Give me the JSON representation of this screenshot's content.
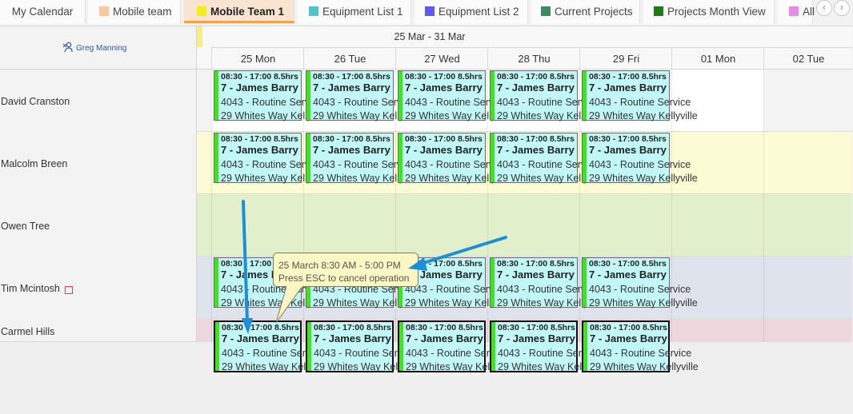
{
  "tabs": [
    {
      "label": "My Calendar",
      "swatch": ""
    },
    {
      "label": "Mobile team",
      "swatch": "#f8c99a"
    },
    {
      "label": "Mobile Team 1",
      "swatch": "#f5ee15",
      "active": true
    },
    {
      "label": "Equipment List 1",
      "swatch": "#4bc7c7"
    },
    {
      "label": "Equipment List 2",
      "swatch": "#5b5bf0"
    },
    {
      "label": "Current Projects",
      "swatch": "#3c8c5f"
    },
    {
      "label": "Projects Month View",
      "swatch": "#1f7a14"
    },
    {
      "label": "All",
      "swatch": "#e58be8"
    }
  ],
  "header": {
    "user": "Greg Manning",
    "week_range": "25 Mar - 31 Mar",
    "days": [
      "25 Mon",
      "26 Tue",
      "27 Wed",
      "28 Thu",
      "29 Fri",
      "01 Mon",
      "02 Tue"
    ]
  },
  "resources": [
    {
      "name": "David Cranston",
      "color": "#ffffff"
    },
    {
      "name": "Malcolm Breen",
      "color": "#fbfbd4"
    },
    {
      "name": "Owen Tree",
      "color": "#e2efcb"
    },
    {
      "name": "Tim Mcintosh",
      "color": "#dfe3ec"
    },
    {
      "name": "Carmel Hills",
      "color": "#ecd7dc"
    }
  ],
  "appointment": {
    "time": "08:30 - 17:00 8.5hrs",
    "title": "7 - James Barry",
    "job": "4043 - Routine Service",
    "address": "29 Whites Way Kellyville",
    "bg_color": "#c2f7f7",
    "bar_color": "#3ce61a"
  },
  "tooltip": {
    "line1": "25 March 8:30 AM - 5:00 PM",
    "line2": "Press ESC to cancel operation"
  },
  "icons": {
    "prev": "chevron-left-icon",
    "next": "chevron-right-icon",
    "user": "user-icon",
    "note": "note-badge-icon"
  }
}
